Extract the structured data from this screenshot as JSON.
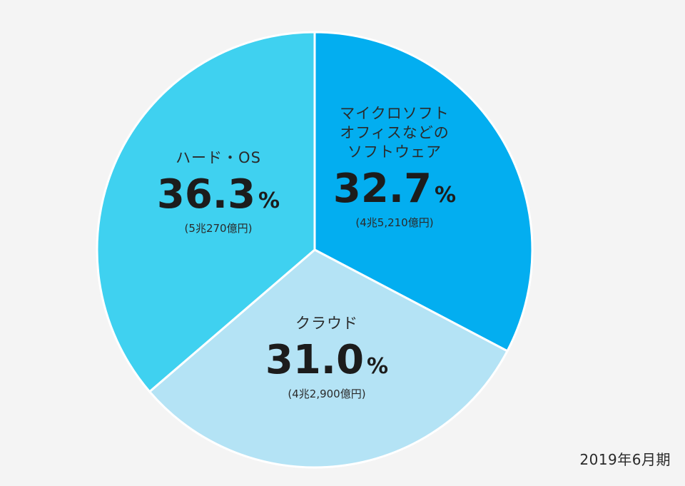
{
  "period": "2019年6月期",
  "chart_data": {
    "type": "pie",
    "title": "",
    "slices": [
      {
        "name_lines": [
          "マイクロソフト",
          "オフィスなどの",
          "ソフトウェア"
        ],
        "value": 32.7,
        "value_label": "32.7",
        "unit": "%",
        "amount": "(4兆5,210億円)",
        "color": "#03aef0"
      },
      {
        "name_lines": [
          "クラウド"
        ],
        "value": 31.0,
        "value_label": "31.0",
        "unit": "%",
        "amount": "(4兆2,900億円)",
        "color": "#b4e3f5"
      },
      {
        "name_lines": [
          "ハード・OS"
        ],
        "value": 36.3,
        "value_label": "36.3",
        "unit": "%",
        "amount": "(5兆270億円)",
        "color": "#3fd1f0"
      }
    ]
  }
}
